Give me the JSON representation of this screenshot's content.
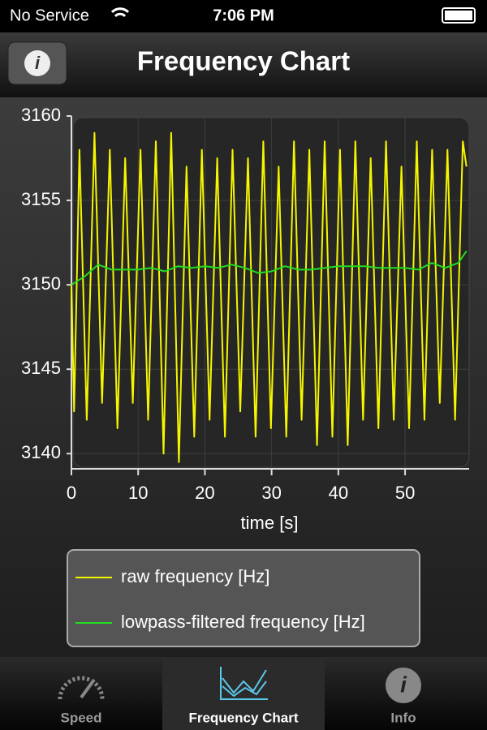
{
  "status_bar": {
    "carrier": "No Service",
    "time": "7:06 PM"
  },
  "nav_bar": {
    "title": "Frequency Chart"
  },
  "chart_data": {
    "type": "line",
    "x_label": "time [s]",
    "xlim": [
      0,
      59.6
    ],
    "ylim": [
      3139.1,
      3160
    ],
    "xticks": [
      0,
      10,
      20,
      30,
      40,
      50
    ],
    "yticks": [
      3140,
      3145,
      3150,
      3155,
      3160
    ],
    "grid": true,
    "legend": "bottom",
    "series": [
      {
        "name": "raw frequency [Hz]",
        "color": "#f5f500",
        "x": [
          0,
          0.4,
          1.2,
          2.3,
          3.45,
          4.6,
          5.75,
          6.9,
          8.05,
          9.2,
          10.35,
          11.5,
          12.65,
          13.8,
          14.95,
          16.1,
          17.25,
          18.4,
          19.55,
          20.7,
          21.85,
          23,
          24.15,
          25.3,
          26.45,
          27.6,
          28.75,
          29.9,
          31.05,
          32.2,
          33.35,
          34.5,
          35.65,
          36.8,
          37.95,
          39.1,
          40.25,
          41.4,
          42.55,
          43.7,
          44.85,
          46,
          47.15,
          48.3,
          49.45,
          50.6,
          51.75,
          52.9,
          54.05,
          55.2,
          56.35,
          57.5,
          58.65,
          59.2
        ],
        "values": [
          3150,
          3142.5,
          3158,
          3142,
          3159,
          3143,
          3158,
          3141.5,
          3157.5,
          3143,
          3158,
          3142,
          3158.5,
          3140,
          3159,
          3139.5,
          3157,
          3141,
          3158,
          3142,
          3157.5,
          3141,
          3158,
          3142.5,
          3157.5,
          3141,
          3158.5,
          3141.5,
          3157,
          3141,
          3158.5,
          3142,
          3158,
          3140.5,
          3158.5,
          3141,
          3158,
          3140.5,
          3158.5,
          3142,
          3157.5,
          3141.5,
          3158.5,
          3142,
          3157,
          3141.5,
          3158.5,
          3142,
          3158,
          3143,
          3158,
          3142,
          3158.5,
          3157
        ]
      },
      {
        "name": "lowpass-filtered frequency [Hz]",
        "color": "#22dd22",
        "x": [
          0,
          2,
          4,
          6,
          8,
          10,
          12,
          14,
          16,
          18,
          20,
          22,
          24,
          26,
          28,
          30,
          32,
          34,
          36,
          38,
          40,
          42,
          44,
          46,
          48,
          50,
          52,
          54,
          56,
          58,
          59.2
        ],
        "values": [
          3150,
          3150.5,
          3151.2,
          3150.9,
          3150.9,
          3150.9,
          3151,
          3150.8,
          3151.1,
          3151,
          3151.1,
          3151,
          3151.2,
          3151,
          3150.7,
          3150.8,
          3151.1,
          3150.9,
          3150.9,
          3151,
          3151.1,
          3151.1,
          3151.1,
          3151,
          3151,
          3151,
          3150.9,
          3151.3,
          3151,
          3151.3,
          3152
        ]
      }
    ]
  },
  "tab_bar": {
    "tabs": [
      "Speed",
      "Frequency Chart",
      "Info"
    ]
  }
}
